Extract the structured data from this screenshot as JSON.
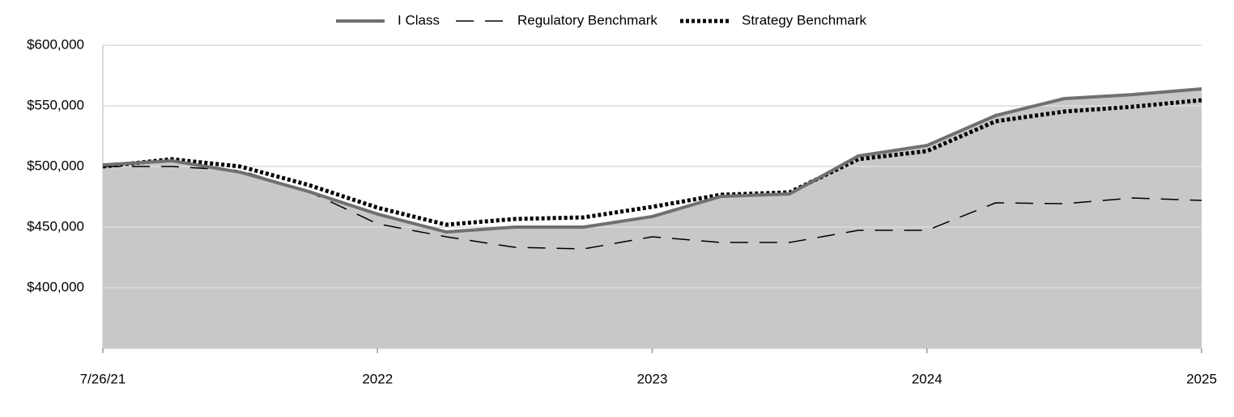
{
  "chart_data": {
    "type": "line",
    "x": [
      0,
      0.25,
      0.5,
      0.75,
      1,
      1.25,
      1.5,
      1.75,
      2,
      2.25,
      2.5,
      2.75,
      3,
      3.25,
      3.5,
      3.75,
      4
    ],
    "xlim": [
      0,
      4
    ],
    "xticks": [
      {
        "value": 0,
        "label": "7/26/21"
      },
      {
        "value": 1,
        "label": "2022"
      },
      {
        "value": 2,
        "label": "2023"
      },
      {
        "value": 3,
        "label": "2024"
      },
      {
        "value": 4,
        "label": "2025"
      }
    ],
    "ylim": [
      350000,
      600000
    ],
    "yticks": [
      {
        "value": 400000,
        "label": "$400,000"
      },
      {
        "value": 450000,
        "label": "$450,000"
      },
      {
        "value": 500000,
        "label": "$500,000"
      },
      {
        "value": 550000,
        "label": "$550,000"
      },
      {
        "value": 600000,
        "label": "$600,000"
      }
    ],
    "grid": true,
    "legend": "top",
    "area_color": "#c8c8c8",
    "series": [
      {
        "name": "I Class",
        "color": "#707070",
        "style": "solid",
        "fill": true,
        "values": [
          501300,
          504700,
          495300,
          479300,
          460700,
          446000,
          450000,
          450000,
          458700,
          475300,
          477300,
          508700,
          517300,
          542000,
          556000,
          559300,
          564000
        ]
      },
      {
        "name": "Regulatory Benchmark",
        "color": "#000000",
        "style": "dashed",
        "values": [
          500000,
          500000,
          496700,
          479300,
          452700,
          442000,
          433300,
          432000,
          442000,
          437300,
          437300,
          447300,
          447300,
          470000,
          469300,
          474000,
          472000
        ]
      },
      {
        "name": "Strategy Benchmark",
        "color": "#000000",
        "style": "dotted",
        "values": [
          500000,
          506000,
          500000,
          484700,
          466000,
          452000,
          456700,
          458000,
          466700,
          476700,
          478700,
          506000,
          512700,
          537300,
          545300,
          549300,
          554700
        ]
      }
    ]
  }
}
